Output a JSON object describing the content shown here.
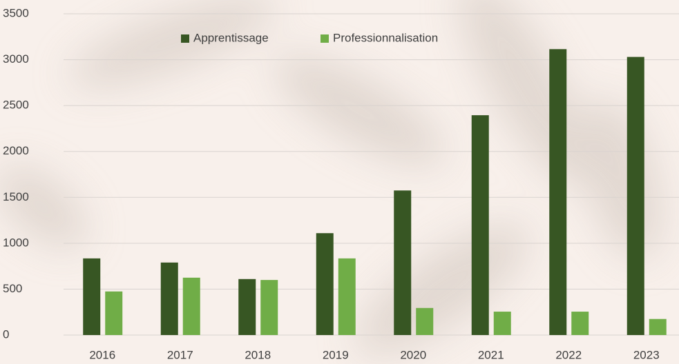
{
  "chart_data": {
    "type": "bar",
    "categories": [
      "2016",
      "2017",
      "2018",
      "2019",
      "2020",
      "2021",
      "2022",
      "2023"
    ],
    "series": [
      {
        "name": "Apprentissage",
        "color": "#375623",
        "values": [
          835,
          790,
          610,
          1110,
          1575,
          2395,
          3115,
          3030
        ]
      },
      {
        "name": "Professionnalisation",
        "color": "#70ad47",
        "values": [
          475,
          625,
          600,
          835,
          295,
          255,
          255,
          175
        ]
      }
    ],
    "ylim": [
      0,
      3500
    ],
    "yticks": [
      0,
      500,
      1000,
      1500,
      2000,
      2500,
      3000,
      3500
    ],
    "grid": true,
    "legend": "top"
  }
}
